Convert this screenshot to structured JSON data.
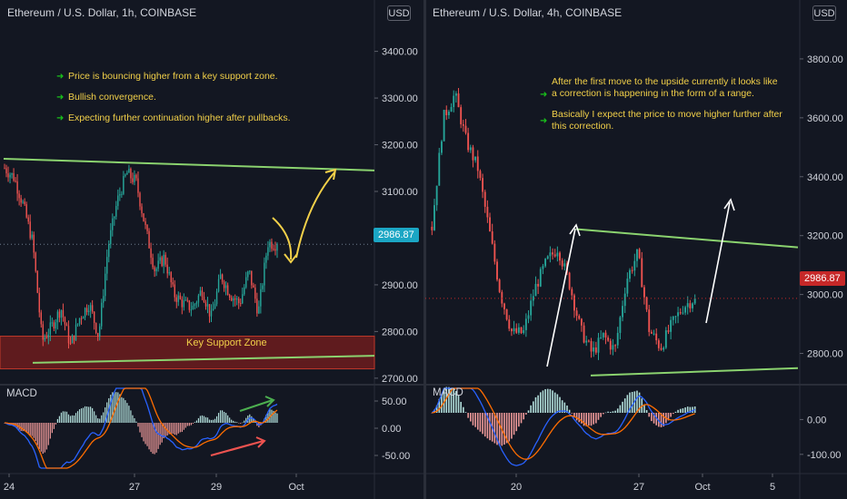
{
  "left_panel": {
    "symbol": "Ethereum / U.S. Dollar, 1h, COINBASE",
    "currency_button": "USD",
    "last_price_label": "2986.87",
    "notes": [
      "Price is bouncing higher from a key support zone.",
      "Bullish convergence.",
      "Expecting further continuation higher after pullbacks."
    ],
    "zone_label": "Key Support Zone",
    "macd_label": "MACD",
    "colors": {
      "last_price_tag": "#1ba6c4",
      "support_zone": "#7a1d1d",
      "trend_lines": "#8bd36f",
      "curve_arrow": "#f2d049"
    }
  },
  "right_panel": {
    "symbol": "Ethereum / U.S. Dollar, 4h, COINBASE",
    "currency_button": "USD",
    "last_price_label": "2986.87",
    "notes": [
      "After the first move to the upside currently it looks like a correction is happening in the form of a range.",
      "Basically I expect the price to move higher further after this correction."
    ],
    "macd_label": "MACD",
    "colors": {
      "last_price_tag": "#c62828",
      "range_lines": "#8bd36f",
      "arrows": "#ffffff"
    }
  },
  "theme": {
    "background": "#131722",
    "bullish": "#26a69a",
    "bearish": "#ef5350",
    "axis_text": "#d1d4dc",
    "annotation_text": "#f2d049"
  },
  "chart_data": [
    {
      "type": "candlestick",
      "title": "Ethereum / U.S. Dollar, 1h, COINBASE",
      "x_ticks": [
        "24",
        "27",
        "29",
        "Oct"
      ],
      "y_ticks": [
        2700,
        2800,
        2900,
        3000,
        3100,
        3200,
        3300,
        3400
      ],
      "ylim": [
        2690,
        3510
      ],
      "last_price": 2986.87,
      "support_zone": [
        2720,
        2790
      ],
      "close_path": [
        3150,
        3130,
        3070,
        2990,
        2780,
        2810,
        2850,
        2770,
        2830,
        2860,
        2790,
        2980,
        3080,
        3140,
        3120,
        3020,
        2930,
        2960,
        2880,
        2860,
        2850,
        2890,
        2830,
        2920,
        2880,
        2860,
        2930,
        2840,
        2990,
        2986.87
      ],
      "macd": {
        "ylim": [
          -80,
          80
        ],
        "y_ticks": [
          50,
          0,
          -50
        ]
      }
    },
    {
      "type": "candlestick",
      "title": "Ethereum / U.S. Dollar, 4h, COINBASE",
      "x_ticks": [
        "20",
        "27",
        "Oct",
        "5"
      ],
      "y_ticks": [
        2800,
        3000,
        3200,
        3400,
        3600,
        3800
      ],
      "ylim": [
        2700,
        4000
      ],
      "last_price": 2986.87,
      "close_path": [
        3230,
        3600,
        3680,
        3520,
        3430,
        3220,
        3000,
        2870,
        2870,
        3020,
        3110,
        3160,
        3040,
        2880,
        2800,
        2860,
        2810,
        3050,
        3140,
        2880,
        2820,
        2900,
        2960,
        2986.87
      ],
      "macd": {
        "ylim": [
          -150,
          100
        ],
        "y_ticks": [
          0,
          -100
        ]
      }
    }
  ]
}
